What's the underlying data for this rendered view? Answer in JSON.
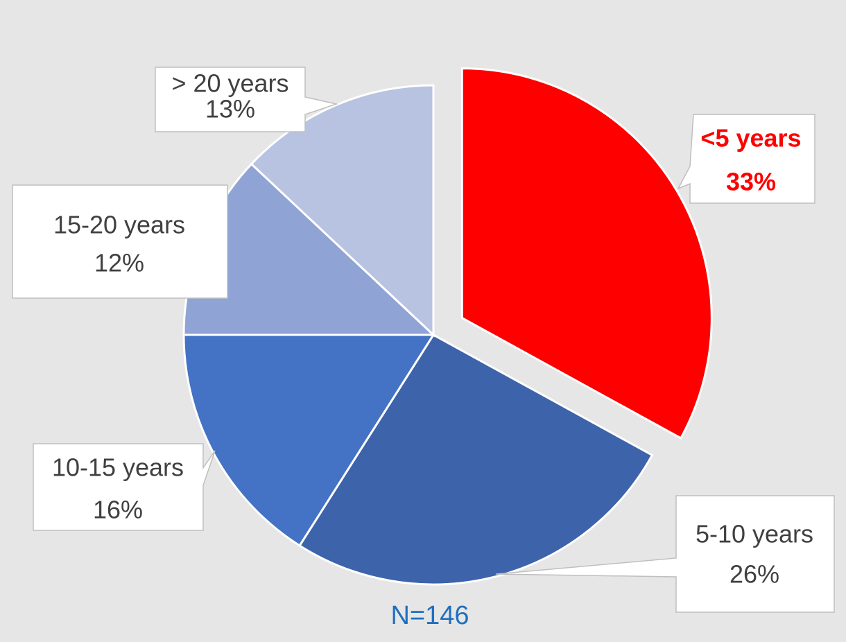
{
  "chart_data": {
    "type": "pie",
    "categories": [
      "<5 years",
      "5-10 years",
      "10-15 years",
      "15-20 years",
      "> 20 years"
    ],
    "values": [
      33,
      26,
      16,
      12,
      13
    ],
    "value_labels": [
      "33%",
      "26%",
      "16%",
      "12%",
      "13%"
    ],
    "colors": [
      "#ff0000",
      "#3d63ab",
      "#4472c4",
      "#8fa3d4",
      "#b8c3e2"
    ],
    "annotation": "N=146"
  }
}
